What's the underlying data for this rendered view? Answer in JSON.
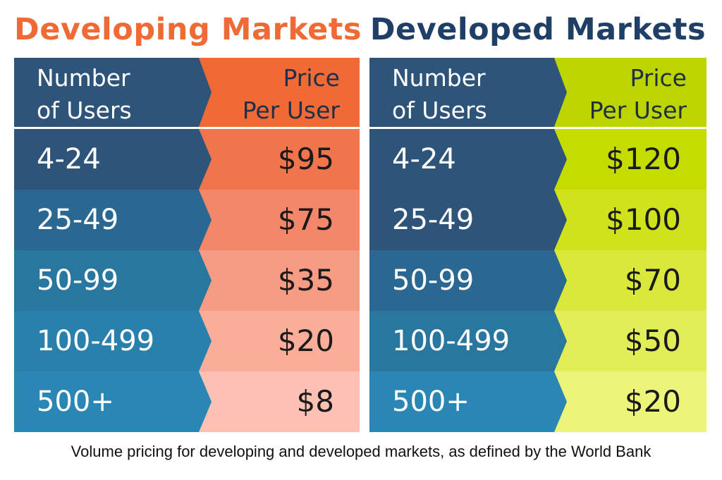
{
  "chart_data": [
    {
      "type": "table",
      "title": "Developing Markets",
      "columns": [
        "Number of Users",
        "Price Per User"
      ],
      "header": {
        "users_line1": "Number",
        "users_line2": "of Users",
        "price_line1": "Price",
        "price_line2": "Per User"
      },
      "rows": [
        {
          "users": "4-24",
          "price": "$95"
        },
        {
          "users": "25-49",
          "price": "$75"
        },
        {
          "users": "50-99",
          "price": "$35"
        },
        {
          "users": "100-499",
          "price": "$20"
        },
        {
          "users": "500+",
          "price": "$8"
        }
      ],
      "title_color": "#ef6a34",
      "header_users_color": "#2e5479",
      "header_price_color": "#ef6a34",
      "users_colors": [
        "#2e5479",
        "#2b6891",
        "#29769e",
        "#2a80ac",
        "#2a86b3"
      ],
      "price_colors": [
        "#f0744c",
        "#f4876a",
        "#f79c84",
        "#faae9a",
        "#fcc1b2"
      ]
    },
    {
      "type": "table",
      "title": "Developed Markets",
      "columns": [
        "Number of Users",
        "Price Per User"
      ],
      "header": {
        "users_line1": "Number",
        "users_line2": "of Users",
        "price_line1": "Price",
        "price_line2": "Per User"
      },
      "rows": [
        {
          "users": "4-24",
          "price": "$120"
        },
        {
          "users": "25-49",
          "price": "$100"
        },
        {
          "users": "50-99",
          "price": "$70"
        },
        {
          "users": "100-499",
          "price": "$50"
        },
        {
          "users": "500+",
          "price": "$20"
        }
      ],
      "title_color": "#1f3f67",
      "header_users_color": "#2e5479",
      "header_price_color": "#bcd500",
      "users_colors": [
        "#2e5479",
        "#2e5479",
        "#2b6891",
        "#29769e",
        "#2a86b3"
      ],
      "price_colors": [
        "#c4dc00",
        "#cfe21c",
        "#d9e83a",
        "#e2ee58",
        "#edf47a"
      ]
    }
  ],
  "caption": "Volume pricing for developing and developed markets, as defined by the World Bank"
}
